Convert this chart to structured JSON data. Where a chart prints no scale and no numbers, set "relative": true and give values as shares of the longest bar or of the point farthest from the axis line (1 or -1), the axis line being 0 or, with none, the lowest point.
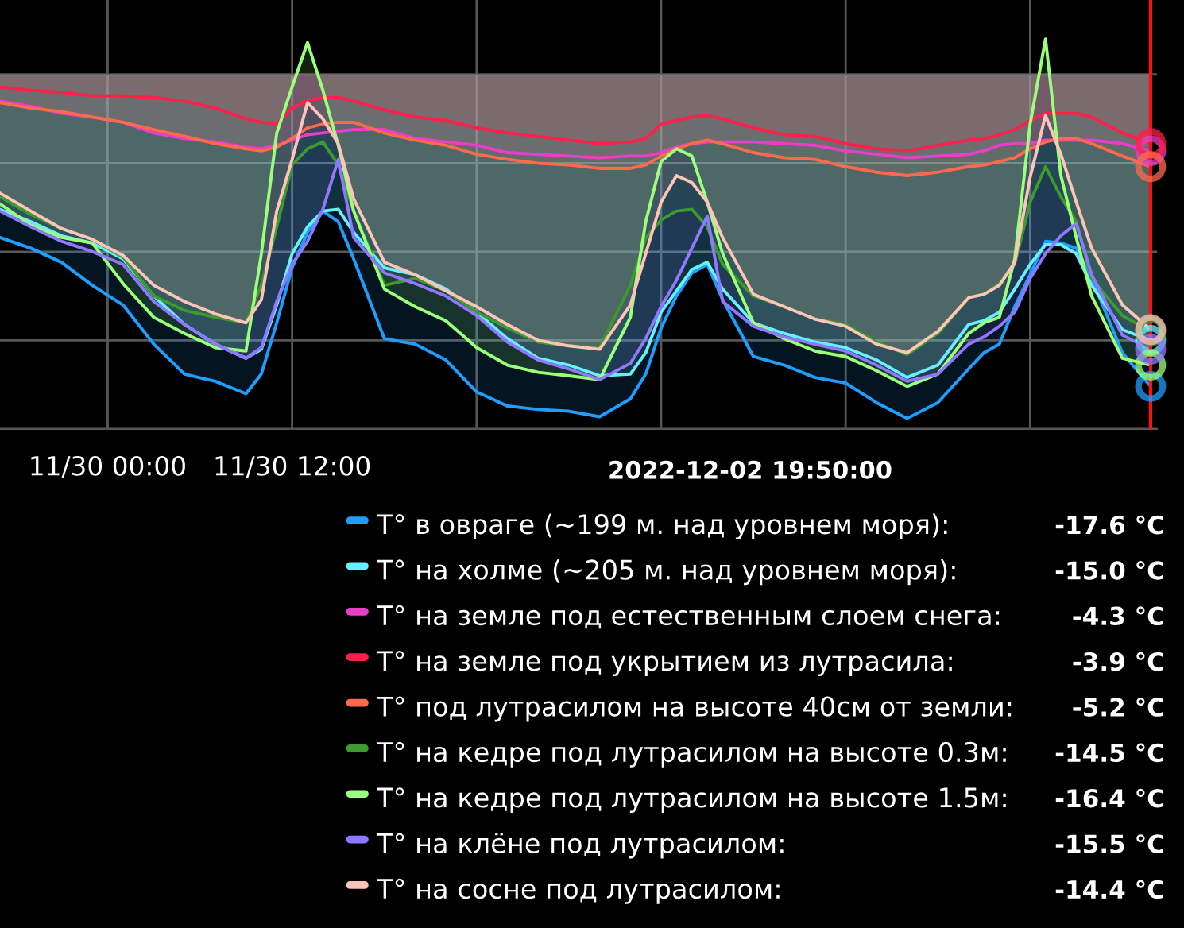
{
  "chart_data": {
    "type": "area",
    "relative": true,
    "x": [
      "2022-11-29T17:00",
      "2022-11-29T19:00",
      "2022-11-29T21:00",
      "2022-11-29T23:00",
      "2022-11-30T01:00",
      "2022-11-30T03:00",
      "2022-11-30T05:00",
      "2022-11-30T07:00",
      "2022-11-30T09:00",
      "2022-11-30T10:00",
      "2022-11-30T11:00",
      "2022-11-30T12:00",
      "2022-11-30T13:00",
      "2022-11-30T14:00",
      "2022-11-30T15:00",
      "2022-11-30T16:00",
      "2022-11-30T18:00",
      "2022-11-30T20:00",
      "2022-11-30T22:00",
      "2022-12-01T00:00",
      "2022-12-01T02:00",
      "2022-12-01T04:00",
      "2022-12-01T06:00",
      "2022-12-01T08:00",
      "2022-12-01T10:00",
      "2022-12-01T11:00",
      "2022-12-01T12:00",
      "2022-12-01T13:00",
      "2022-12-01T14:00",
      "2022-12-01T15:00",
      "2022-12-01T16:00",
      "2022-12-01T18:00",
      "2022-12-01T20:00",
      "2022-12-01T22:00",
      "2022-12-02T00:00",
      "2022-12-02T02:00",
      "2022-12-02T04:00",
      "2022-12-02T06:00",
      "2022-12-02T08:00",
      "2022-12-02T09:00",
      "2022-12-02T10:00",
      "2022-12-02T11:00",
      "2022-12-02T12:00",
      "2022-12-02T13:00",
      "2022-12-02T14:00",
      "2022-12-02T15:00",
      "2022-12-02T16:00",
      "2022-12-02T18:00",
      "2022-12-02T19:50"
    ],
    "xlim": [
      "2022-11-29T17:00",
      "2022-12-02T20:15"
    ],
    "xticks": [
      {
        "value": "2022-11-30T00:00",
        "label": "11/30 00:00"
      },
      {
        "value": "2022-11-30T12:00",
        "label": "11/30 12:00"
      },
      {
        "value": "2022-12-01T00:00",
        "label": null
      },
      {
        "value": "2022-12-01T12:00",
        "label": null
      },
      {
        "value": "2022-12-02T00:00",
        "label": null
      },
      {
        "value": "2022-12-02T12:00",
        "label": null
      }
    ],
    "grid": true,
    "legend": "bottom right",
    "legend_title": "2022-12-02 19:50:00",
    "annotations": [
      "-17.6 °C",
      "-15.0 °C",
      "-4.3 °C",
      "-3.9 °C",
      "-5.2 °C",
      "-14.5 °C",
      "-16.4 °C",
      "-15.5 °C",
      "-14.4 °C"
    ],
    "ref_lines": [
      {
        "axis": "x",
        "value": "2022-12-02T19:50",
        "color": "#ff1010"
      }
    ],
    "series": [
      {
        "name": "Т° в овраге (~199 м. над уровнем моря):",
        "color": "#1e9fff",
        "values": [
          -0.474,
          -0.505,
          -0.546,
          -0.613,
          -0.67,
          -0.784,
          -0.871,
          -0.892,
          -0.928,
          -0.871,
          -0.722,
          -0.562,
          -0.459,
          -0.397,
          -0.428,
          -0.536,
          -0.768,
          -0.784,
          -0.83,
          -0.923,
          -0.964,
          -0.974,
          -0.979,
          -0.995,
          -0.943,
          -0.871,
          -0.737,
          -0.644,
          -0.577,
          -0.552,
          -0.655,
          -0.82,
          -0.845,
          -0.881,
          -0.897,
          -0.954,
          -1,
          -0.954,
          -0.856,
          -0.809,
          -0.784,
          -0.675,
          -0.582,
          -0.485,
          -0.49,
          -0.505,
          -0.593,
          -0.809,
          -0.907
        ]
      },
      {
        "name": "Т° на холме (~205 м. над уровнем моря):",
        "color": "#66f0ff",
        "values": [
          -0.392,
          -0.428,
          -0.469,
          -0.49,
          -0.536,
          -0.644,
          -0.727,
          -0.784,
          -0.825,
          -0.799,
          -0.67,
          -0.521,
          -0.443,
          -0.397,
          -0.392,
          -0.459,
          -0.562,
          -0.582,
          -0.624,
          -0.691,
          -0.768,
          -0.825,
          -0.845,
          -0.876,
          -0.871,
          -0.809,
          -0.691,
          -0.629,
          -0.567,
          -0.546,
          -0.624,
          -0.722,
          -0.753,
          -0.778,
          -0.794,
          -0.83,
          -0.881,
          -0.845,
          -0.727,
          -0.716,
          -0.691,
          -0.624,
          -0.552,
          -0.495,
          -0.495,
          -0.521,
          -0.613,
          -0.742,
          -0.773
        ]
      },
      {
        "name": "Т° на земле под естественным слоем снега:",
        "color": "#e83ec8",
        "values": [
          -0.077,
          -0.093,
          -0.113,
          -0.124,
          -0.139,
          -0.17,
          -0.186,
          -0.196,
          -0.211,
          -0.216,
          -0.206,
          -0.191,
          -0.175,
          -0.17,
          -0.165,
          -0.16,
          -0.16,
          -0.186,
          -0.196,
          -0.206,
          -0.227,
          -0.232,
          -0.237,
          -0.242,
          -0.237,
          -0.237,
          -0.227,
          -0.211,
          -0.201,
          -0.196,
          -0.196,
          -0.196,
          -0.201,
          -0.206,
          -0.222,
          -0.232,
          -0.242,
          -0.237,
          -0.232,
          -0.222,
          -0.206,
          -0.201,
          -0.201,
          -0.191,
          -0.191,
          -0.191,
          -0.191,
          -0.201,
          -0.222
        ]
      },
      {
        "name": "Т° на земле под укрытием из лутрасила:",
        "color": "#ff1f4b",
        "values": [
          -0.036,
          -0.046,
          -0.052,
          -0.062,
          -0.062,
          -0.067,
          -0.077,
          -0.098,
          -0.129,
          -0.139,
          -0.144,
          -0.098,
          -0.077,
          -0.067,
          -0.067,
          -0.077,
          -0.103,
          -0.124,
          -0.134,
          -0.155,
          -0.17,
          -0.18,
          -0.191,
          -0.201,
          -0.196,
          -0.186,
          -0.144,
          -0.134,
          -0.124,
          -0.119,
          -0.129,
          -0.155,
          -0.175,
          -0.18,
          -0.201,
          -0.216,
          -0.222,
          -0.206,
          -0.191,
          -0.186,
          -0.175,
          -0.16,
          -0.134,
          -0.113,
          -0.113,
          -0.113,
          -0.124,
          -0.17,
          -0.201
        ]
      },
      {
        "name": "Т° под лутрасилом на высоте 40см от земли:",
        "color": "#ff6a4d",
        "values": [
          -0.082,
          -0.098,
          -0.108,
          -0.124,
          -0.139,
          -0.16,
          -0.18,
          -0.201,
          -0.216,
          -0.222,
          -0.211,
          -0.186,
          -0.155,
          -0.144,
          -0.139,
          -0.139,
          -0.17,
          -0.191,
          -0.206,
          -0.232,
          -0.247,
          -0.258,
          -0.263,
          -0.273,
          -0.273,
          -0.263,
          -0.237,
          -0.216,
          -0.201,
          -0.191,
          -0.201,
          -0.227,
          -0.242,
          -0.247,
          -0.268,
          -0.284,
          -0.294,
          -0.284,
          -0.268,
          -0.263,
          -0.253,
          -0.242,
          -0.216,
          -0.196,
          -0.186,
          -0.186,
          -0.201,
          -0.237,
          -0.268
        ]
      },
      {
        "name": "Т° на кедре под лутрасилом на высоте 0.3м:",
        "color": "#3c9a2e",
        "values": [
          -0.356,
          -0.407,
          -0.448,
          -0.479,
          -0.531,
          -0.644,
          -0.686,
          -0.706,
          -0.722,
          -0.613,
          -0.443,
          -0.263,
          -0.216,
          -0.196,
          -0.263,
          -0.397,
          -0.613,
          -0.593,
          -0.629,
          -0.691,
          -0.737,
          -0.778,
          -0.789,
          -0.794,
          -0.613,
          -0.474,
          -0.423,
          -0.397,
          -0.392,
          -0.443,
          -0.552,
          -0.644,
          -0.675,
          -0.711,
          -0.727,
          -0.778,
          -0.814,
          -0.753,
          -0.649,
          -0.639,
          -0.608,
          -0.552,
          -0.371,
          -0.268,
          -0.356,
          -0.428,
          -0.593,
          -0.701,
          -0.747
        ]
      },
      {
        "name": "Т° на кедре под лутрасилом на высоте 1.5м:",
        "color": "#9cff7a",
        "values": [
          -0.376,
          -0.438,
          -0.474,
          -0.49,
          -0.608,
          -0.706,
          -0.753,
          -0.794,
          -0.804,
          -0.521,
          -0.17,
          -0.036,
          0.093,
          -0.046,
          -0.206,
          -0.397,
          -0.624,
          -0.675,
          -0.716,
          -0.794,
          -0.845,
          -0.866,
          -0.876,
          -0.887,
          -0.706,
          -0.428,
          -0.253,
          -0.216,
          -0.237,
          -0.371,
          -0.521,
          -0.722,
          -0.768,
          -0.804,
          -0.82,
          -0.861,
          -0.907,
          -0.871,
          -0.753,
          -0.722,
          -0.706,
          -0.536,
          -0.144,
          0.103,
          -0.294,
          -0.474,
          -0.644,
          -0.825,
          -0.845
        ]
      },
      {
        "name": "Т° на клёне под лутрасилом:",
        "color": "#8f78ff",
        "values": [
          -0.397,
          -0.443,
          -0.485,
          -0.515,
          -0.552,
          -0.66,
          -0.727,
          -0.784,
          -0.825,
          -0.794,
          -0.66,
          -0.552,
          -0.485,
          -0.392,
          -0.247,
          -0.474,
          -0.577,
          -0.608,
          -0.644,
          -0.701,
          -0.778,
          -0.83,
          -0.856,
          -0.887,
          -0.84,
          -0.768,
          -0.675,
          -0.598,
          -0.505,
          -0.412,
          -0.66,
          -0.732,
          -0.763,
          -0.784,
          -0.804,
          -0.845,
          -0.892,
          -0.871,
          -0.784,
          -0.763,
          -0.732,
          -0.691,
          -0.593,
          -0.521,
          -0.469,
          -0.433,
          -0.582,
          -0.758,
          -0.799
        ]
      },
      {
        "name": "Т° на сосне под лутрасилом:",
        "color": "#ffc4b8",
        "values": [
          -0.345,
          -0.397,
          -0.448,
          -0.479,
          -0.526,
          -0.613,
          -0.66,
          -0.696,
          -0.722,
          -0.655,
          -0.397,
          -0.247,
          -0.082,
          -0.129,
          -0.201,
          -0.361,
          -0.546,
          -0.582,
          -0.629,
          -0.675,
          -0.727,
          -0.773,
          -0.789,
          -0.799,
          -0.67,
          -0.521,
          -0.371,
          -0.294,
          -0.314,
          -0.371,
          -0.474,
          -0.639,
          -0.675,
          -0.711,
          -0.732,
          -0.784,
          -0.809,
          -0.747,
          -0.649,
          -0.639,
          -0.613,
          -0.546,
          -0.299,
          -0.119,
          -0.232,
          -0.371,
          -0.505,
          -0.67,
          -0.742
        ]
      }
    ]
  }
}
